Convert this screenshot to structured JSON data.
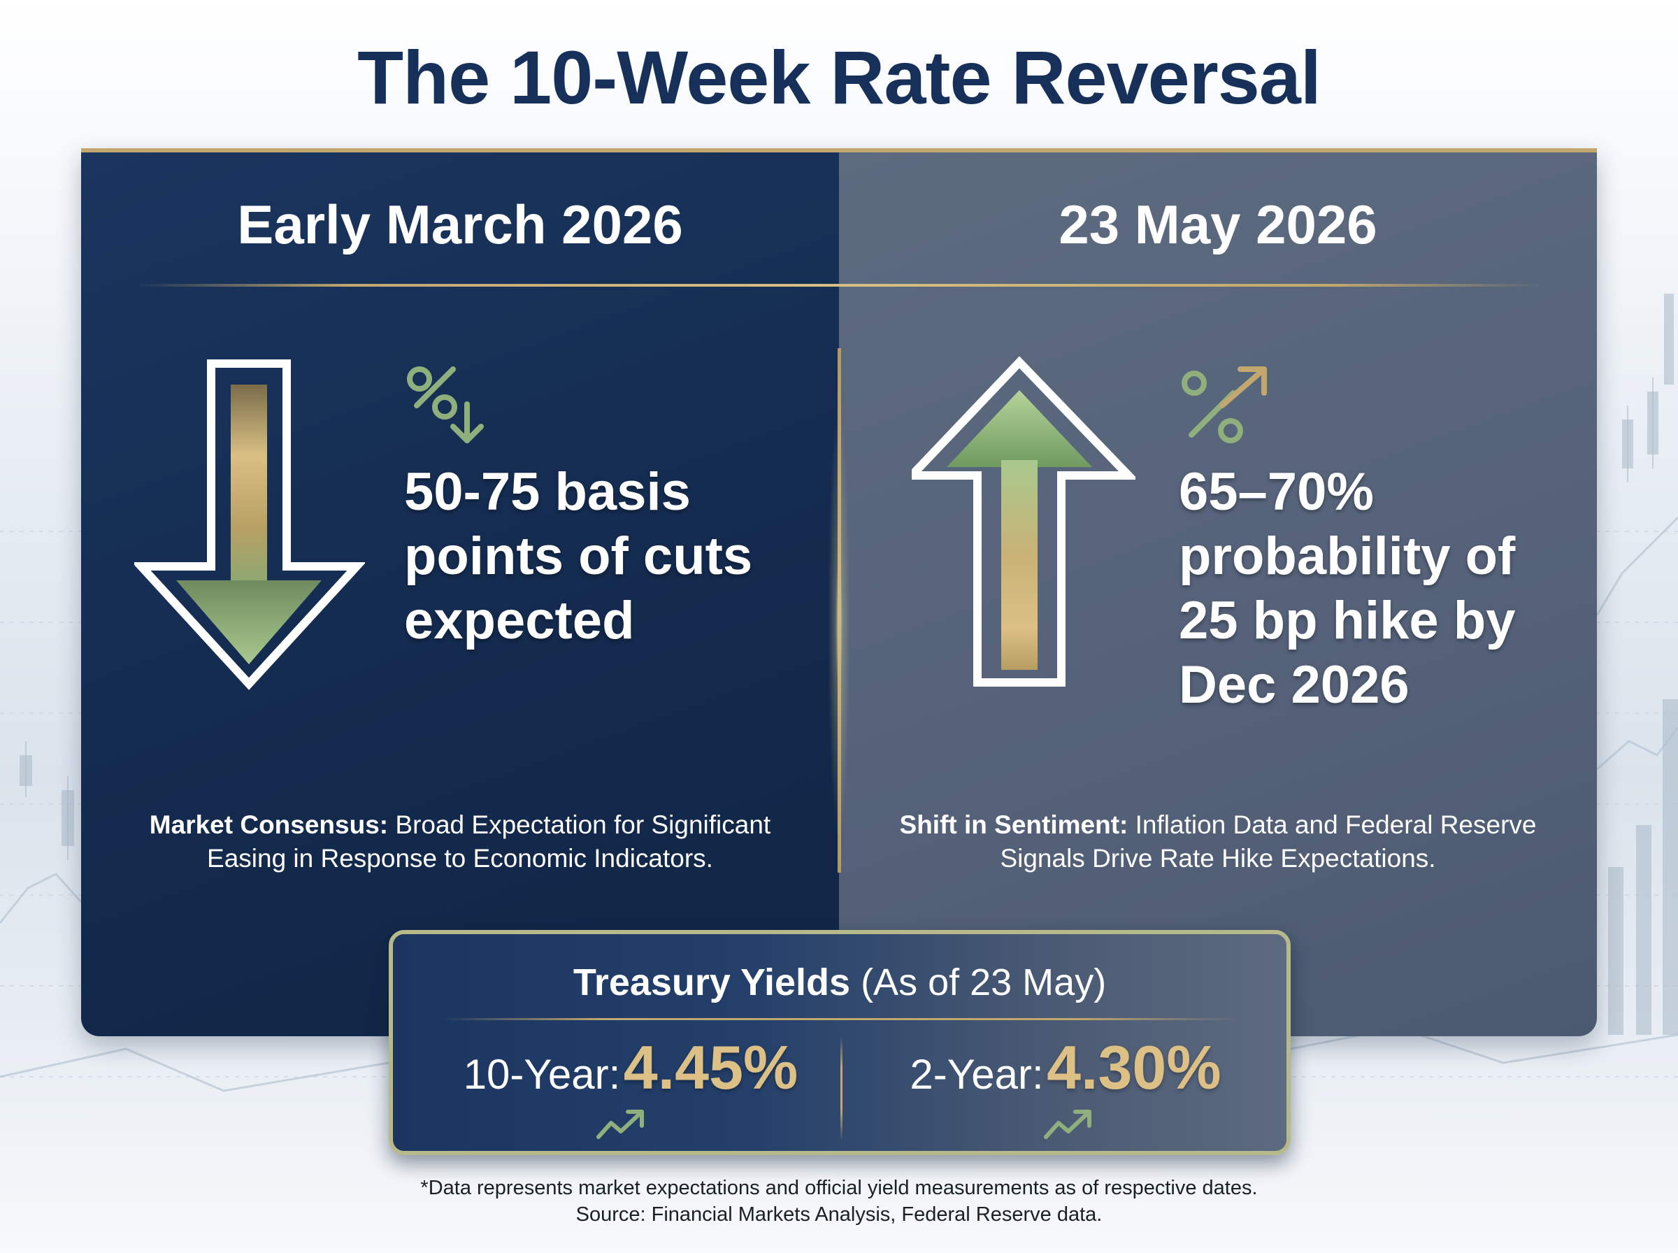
{
  "title": "The 10-Week Rate Reversal",
  "colors": {
    "navy": "#16305a",
    "panel_left": "#142b4f",
    "panel_right": "#55627a",
    "gold": "#c2a76e",
    "sage_green": "#8fb07c",
    "yield_value": "#dcc086"
  },
  "left_panel": {
    "heading": "Early March 2026",
    "arrow": "down-arrow-icon",
    "metric_icon": "percent-down-icon",
    "metric": "50-75 basis points of cuts expected",
    "caption_label": "Market Consensus:",
    "caption_text": "Broad Expectation for Significant Easing in Response to Economic Indicators."
  },
  "right_panel": {
    "heading": "23 May 2026",
    "arrow": "up-arrow-icon",
    "metric_icon": "percent-up-icon",
    "metric": "65–70% probability of 25 bp hike by Dec 2026",
    "caption_label": "Shift in Sentiment:",
    "caption_text": "Inflation Data and Federal Reserve Signals Drive Rate Hike Expectations."
  },
  "yields": {
    "title_bold": "Treasury Yields",
    "title_rest": "(As of 23 May)",
    "ten_year": {
      "label": "10-Year:",
      "value": "4.45%",
      "icon": "trend-up-icon"
    },
    "two_year": {
      "label": "2-Year:",
      "value": "4.30%",
      "icon": "trend-up-icon"
    }
  },
  "footnote": {
    "line1": "*Data represents market expectations and official yield measurements as of respective dates.",
    "line2": "Source: Financial Markets Analysis, Federal Reserve data."
  }
}
